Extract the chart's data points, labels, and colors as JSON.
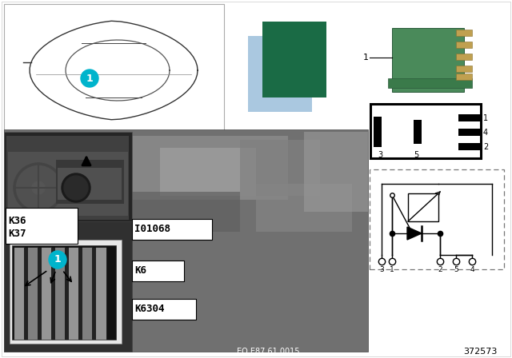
{
  "bg": "#ffffff",
  "cyan": "#00b4cc",
  "dark_green_swatch": "#1a6b45",
  "light_blue_swatch": "#aac8e0",
  "photo_engine_large": "#808080",
  "photo_dash": "#383838",
  "photo_fuse_area": "#2a2a2a",
  "fuse_cell_light": "#cccccc",
  "fuse_cell_dark": "#888888",
  "label_bg": "#ffffff",
  "label_border": "#000000",
  "relay_body": "#3d7a52",
  "relay_pin_color": "#b8a060",
  "pin_box_fill": "#ffffff",
  "pin_box_border": "#000000",
  "schematic_fill": "#ffffff",
  "schematic_border": "#666666",
  "footer_text": "EO E87 61 0015",
  "part_num": "372573",
  "K36": "K36",
  "K37": "K37",
  "I01068": "I01068",
  "K6": "K6",
  "K6304": "K6304"
}
